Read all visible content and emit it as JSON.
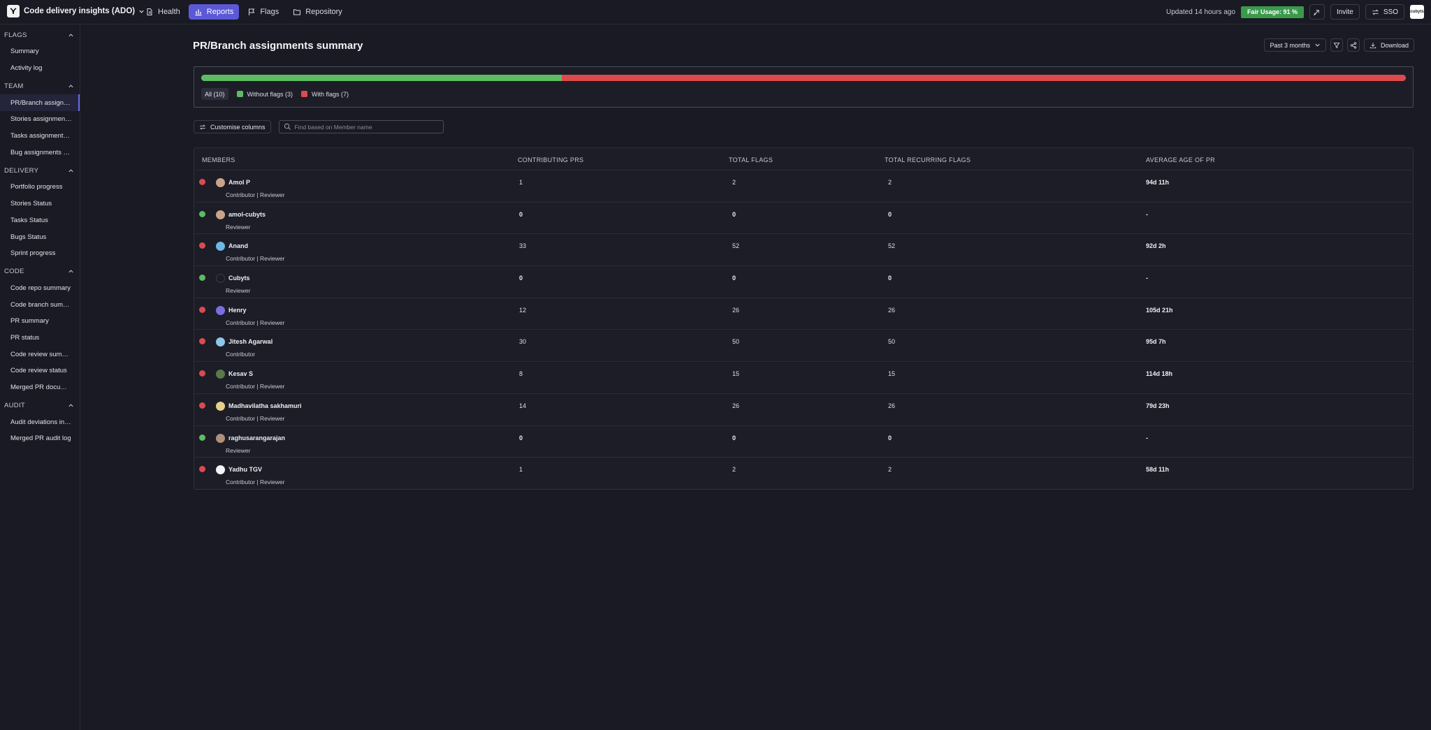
{
  "app": {
    "title": "Code delivery insights (ADO)",
    "nav": [
      {
        "label": "Health",
        "icon": "document-icon"
      },
      {
        "label": "Reports",
        "icon": "chart-icon",
        "active": true
      },
      {
        "label": "Flags",
        "icon": "flag-icon"
      },
      {
        "label": "Repository",
        "icon": "folder-icon"
      }
    ],
    "updated": "Updated 14 hours ago",
    "fair_usage": "Fair Usage: 91 %",
    "invite_label": "Invite",
    "sso_label": "SSO",
    "avatar_text": "cubyts"
  },
  "sidebar": {
    "sections": [
      {
        "title": "FLAGS",
        "items": [
          "Summary",
          "Activity log"
        ]
      },
      {
        "title": "TEAM",
        "items": [
          "PR/Branch assignments summary",
          "Stories assignments summary",
          "Tasks assignments summary",
          "Bug assignments summary"
        ]
      },
      {
        "title": "DELIVERY",
        "items": [
          "Portfolio progress",
          "Stories Status",
          "Tasks Status",
          "Bugs Status",
          "Sprint progress"
        ]
      },
      {
        "title": "CODE",
        "items": [
          "Code repo summary",
          "Code branch summary",
          "PR summary",
          "PR status",
          "Code review summary",
          "Code review status",
          "Merged PR documentation"
        ]
      },
      {
        "title": "AUDIT",
        "items": [
          "Audit deviations in open PRs",
          "Merged PR audit log"
        ]
      }
    ],
    "active_item": "PR/Branch assignments summary"
  },
  "page": {
    "title": "PR/Branch assignments summary",
    "period_label": "Past 3 months",
    "download_label": "Download"
  },
  "summary": {
    "all_label": "All (10)",
    "without_label": "Without flags (3)",
    "with_label": "With flags (7)",
    "without_count": 3,
    "with_count": 7,
    "total": 10,
    "colors": {
      "without": "#5dbb63",
      "with": "#dd4a4e"
    }
  },
  "controls": {
    "customise_label": "Customise columns",
    "search_placeholder": "Find based on Member name"
  },
  "table": {
    "headers": [
      "MEMBERS",
      "CONTRIBUTING PRS",
      "TOTAL FLAGS",
      "TOTAL RECURRING FLAGS",
      "AVERAGE AGE OF PR"
    ],
    "rows": [
      {
        "status": "flagged",
        "name": "Amol P",
        "role": "Contributor | Reviewer",
        "prs": "1",
        "flags": "2",
        "recurring": "2",
        "age": "94d 11h"
      },
      {
        "status": "clean",
        "name": "amol-cubyts",
        "role": "Reviewer",
        "prs": "0",
        "flags": "0",
        "recurring": "0",
        "age": "-"
      },
      {
        "status": "flagged",
        "name": "Anand",
        "role": "Contributor | Reviewer",
        "prs": "33",
        "flags": "52",
        "recurring": "52",
        "age": "92d 2h"
      },
      {
        "status": "clean",
        "name": "Cubyts",
        "role": "Reviewer",
        "prs": "0",
        "flags": "0",
        "recurring": "0",
        "age": "-"
      },
      {
        "status": "flagged",
        "name": "Henry",
        "role": "Contributor | Reviewer",
        "prs": "12",
        "flags": "26",
        "recurring": "26",
        "age": "105d 21h"
      },
      {
        "status": "flagged",
        "name": "Jitesh Agarwal",
        "role": "Contributor",
        "prs": "30",
        "flags": "50",
        "recurring": "50",
        "age": "95d 7h"
      },
      {
        "status": "flagged",
        "name": "Kesav S",
        "role": "Contributor | Reviewer",
        "prs": "8",
        "flags": "15",
        "recurring": "15",
        "age": "114d 18h"
      },
      {
        "status": "flagged",
        "name": "Madhavilatha sakhamuri",
        "role": "Contributor | Reviewer",
        "prs": "14",
        "flags": "26",
        "recurring": "26",
        "age": "79d 23h"
      },
      {
        "status": "clean",
        "name": "raghusarangarajan",
        "role": "Reviewer",
        "prs": "0",
        "flags": "0",
        "recurring": "0",
        "age": "-"
      },
      {
        "status": "flagged",
        "name": "Yadhu TGV",
        "role": "Contributor | Reviewer",
        "prs": "1",
        "flags": "2",
        "recurring": "2",
        "age": "58d 11h"
      }
    ]
  }
}
